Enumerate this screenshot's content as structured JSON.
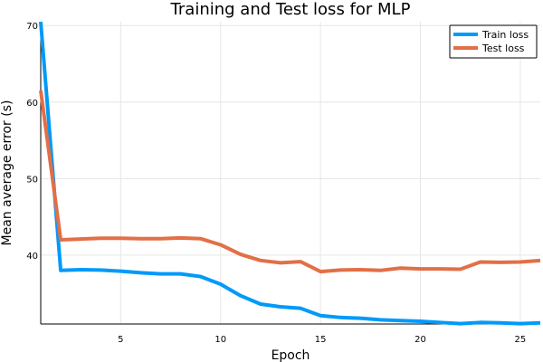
{
  "chart_data": {
    "type": "line",
    "title": "Training and Test loss for MLP",
    "xlabel": "Epoch",
    "ylabel": "Mean average error (s)",
    "xlim": [
      1,
      26
    ],
    "ylim": [
      31,
      70.5
    ],
    "xticks": [
      5,
      10,
      15,
      20,
      25
    ],
    "yticks": [
      40,
      50,
      60,
      70
    ],
    "grid": true,
    "legend_position": "top-right",
    "x": [
      1,
      2,
      3,
      4,
      5,
      6,
      7,
      8,
      9,
      10,
      11,
      12,
      13,
      14,
      15,
      16,
      17,
      18,
      19,
      20,
      21,
      22,
      23,
      24,
      25,
      26
    ],
    "series": [
      {
        "name": "Train loss",
        "color": "#009af9",
        "values": [
          70.5,
          38.0,
          38.1,
          38.05,
          37.9,
          37.7,
          37.55,
          37.55,
          37.2,
          36.2,
          34.7,
          33.6,
          33.25,
          33.05,
          32.1,
          31.85,
          31.75,
          31.55,
          31.45,
          31.35,
          31.2,
          31.05,
          31.2,
          31.15,
          31.05,
          31.15
        ]
      },
      {
        "name": "Test loss",
        "color": "#e26f46",
        "values": [
          61.5,
          42.0,
          42.1,
          42.2,
          42.2,
          42.15,
          42.15,
          42.25,
          42.15,
          41.35,
          40.1,
          39.3,
          39.0,
          39.15,
          37.85,
          38.05,
          38.1,
          38.0,
          38.3,
          38.2,
          38.2,
          38.15,
          39.1,
          39.05,
          39.1,
          39.3
        ]
      }
    ]
  }
}
